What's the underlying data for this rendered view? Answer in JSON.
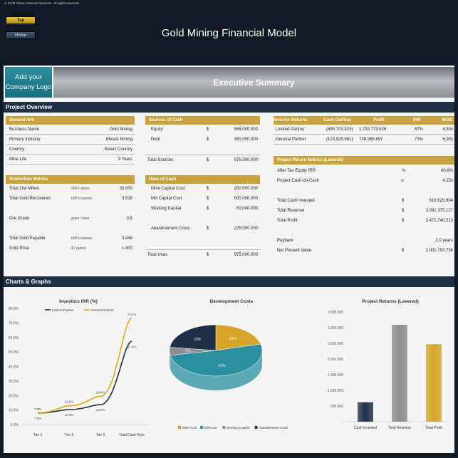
{
  "copyright": "© Profit Vision Financial Services. All rights reserved.",
  "nav": {
    "top_label": "Top",
    "home_label": "Home"
  },
  "title": "Gold Mining Financial Model",
  "logo_text": "Add your Company Logo",
  "exec_title": "Executive Summary",
  "sections": {
    "overview": "Project Overview",
    "charts": "Charts & Graphs"
  },
  "general_info": {
    "header": "General Info",
    "rows": [
      {
        "label": "Business Name",
        "value": "Gold Mining"
      },
      {
        "label": "Primary Industry",
        "value": "Metals Mining"
      },
      {
        "label": "Country",
        "value": "Select Country"
      },
      {
        "label": "Mine Life",
        "value": "9 Years"
      }
    ]
  },
  "production": {
    "header": "Production Metrics",
    "rows": [
      {
        "label": "Total Ore Milled",
        "unit": "000's tones",
        "value": "30.000"
      },
      {
        "label": "Total Gold Recovered",
        "unit": "000's ounces",
        "value": "3.518"
      },
      {
        "label": "Ore Grade",
        "unit": "gram / tone",
        "value": "3,5"
      },
      {
        "label": "Total Gold Payable",
        "unit": "000's ounces",
        "value": "3.448"
      },
      {
        "label": "Gold Price",
        "unit": "$ / ounce",
        "value": "1.800"
      }
    ]
  },
  "sources": {
    "header": "Sources of Cash",
    "rows": [
      {
        "label": "Equity",
        "cur": "$",
        "value": "585.000.000"
      },
      {
        "label": "Debt",
        "cur": "$",
        "value": "390.000.000"
      }
    ],
    "total": {
      "label": "Total Sources",
      "cur": "$",
      "value": "975.000.000"
    }
  },
  "uses": {
    "header": "Uses of Cash",
    "rows": [
      {
        "label": "Mine Capital Cost",
        "cur": "$",
        "value": "200.000.000"
      },
      {
        "label": "Mill Capital Cost",
        "cur": "$",
        "value": "500.000.000"
      },
      {
        "label": "Working Capital",
        "cur": "$",
        "value": "50.000.000"
      },
      {
        "label": "Abandonment Costs",
        "cur": "$",
        "value": "225.000.000"
      }
    ],
    "total": {
      "label": "Total Uses",
      "cur": "$",
      "value": "975.000.000"
    }
  },
  "investor_returns": {
    "headers": [
      "Investor Returns",
      "Cash Outflow",
      "Profit",
      "IRR",
      "MOIC"
    ],
    "rows": [
      {
        "label": "Limited Partner",
        "outflow": "(495.703.923)",
        "profit": "1.732.773.526",
        "irr": "57%",
        "moic": "4,50x"
      },
      {
        "label": "General Partner",
        "outflow": "(123.925.981)",
        "profit": "738.966.697",
        "irr": "73%",
        "moic": "6,90x"
      }
    ]
  },
  "return_metrics": {
    "header": "Project Return Metrics (Levered)",
    "rows": [
      {
        "label": "After Tax Equity IRR",
        "cur": "%",
        "value": "60,6%"
      },
      {
        "label": "Project Cash-on-Cash",
        "cur": "x",
        "value": "4,23x"
      },
      {
        "label": "Total Cash Invested",
        "cur": "$",
        "value": "619.629.904"
      },
      {
        "label": "Total Revenue",
        "cur": "$",
        "value": "3.091.370.127"
      },
      {
        "label": "Total Profit",
        "cur": "$",
        "value": "2.471.740.223"
      },
      {
        "label": "Payback",
        "cur": "",
        "value": "2,0 years"
      },
      {
        "label": "Net Present Value",
        "cur": "$",
        "value": "2.001.793.736"
      }
    ]
  },
  "colors": {
    "navy": "#1f2f45",
    "gold": "#c9a23e",
    "teal": "#2a8fa0",
    "gray": "#8c8c8c"
  },
  "chart_data": [
    {
      "type": "line",
      "title": "Investors IRR (%)",
      "categories": [
        "Tier 1",
        "Tier 2",
        "Tier 3",
        "Total Cash Flow"
      ],
      "ylim": [
        0,
        80
      ],
      "y_ticks": [
        "0,0%",
        "10,0%",
        "20,0%",
        "30,0%",
        "40,0%",
        "50,0%",
        "60,0%",
        "70,0%",
        "80,0%"
      ],
      "series": [
        {
          "name": "Limited Partner",
          "values": [
            7.9,
            10.3,
            13.7,
            57.3
          ],
          "labels": [
            "7,9%",
            "10,3%",
            "13,7%",
            "57,3%"
          ],
          "color": "#1f2f45"
        },
        {
          "name": "General Partner",
          "values": [
            7.9,
            12.9,
            19.4,
            73.2
          ],
          "labels": [
            "7,9%",
            "12,9%",
            "19,4%",
            "73,2%"
          ],
          "color": "#e0a818"
        }
      ],
      "grid": false,
      "legend": "top"
    },
    {
      "type": "pie",
      "title": "Development Costs",
      "slices": [
        {
          "name": "Mine Cost",
          "value": 21,
          "label": "21%",
          "color": "#d4a52a"
        },
        {
          "name": "Mill Cost",
          "value": 51,
          "label": "51%",
          "color": "#2a8fa0"
        },
        {
          "name": "Working Capital",
          "value": 5,
          "label": "5%",
          "color": "#8c8c8c"
        },
        {
          "name": "Abandonment Costs",
          "value": 23,
          "label": "23%",
          "color": "#1f2f45"
        }
      ],
      "legend": "bottom"
    },
    {
      "type": "bar",
      "title": "Project Returns (Levered)",
      "categories": [
        "Cash Invested",
        "Total Revenue",
        "Total Profit"
      ],
      "values": [
        619.6,
        3091.4,
        2471.7
      ],
      "colors": [
        "#1f2f45",
        "#8c8c8c",
        "#d4a52a"
      ],
      "ylim": [
        0,
        3500
      ],
      "y_ticks": [
        "-",
        "500.000",
        "1.000.000",
        "1.500.000",
        "2.000.000",
        "2.500.000",
        "3.000.000",
        "3.500.000"
      ],
      "grid": false
    }
  ]
}
